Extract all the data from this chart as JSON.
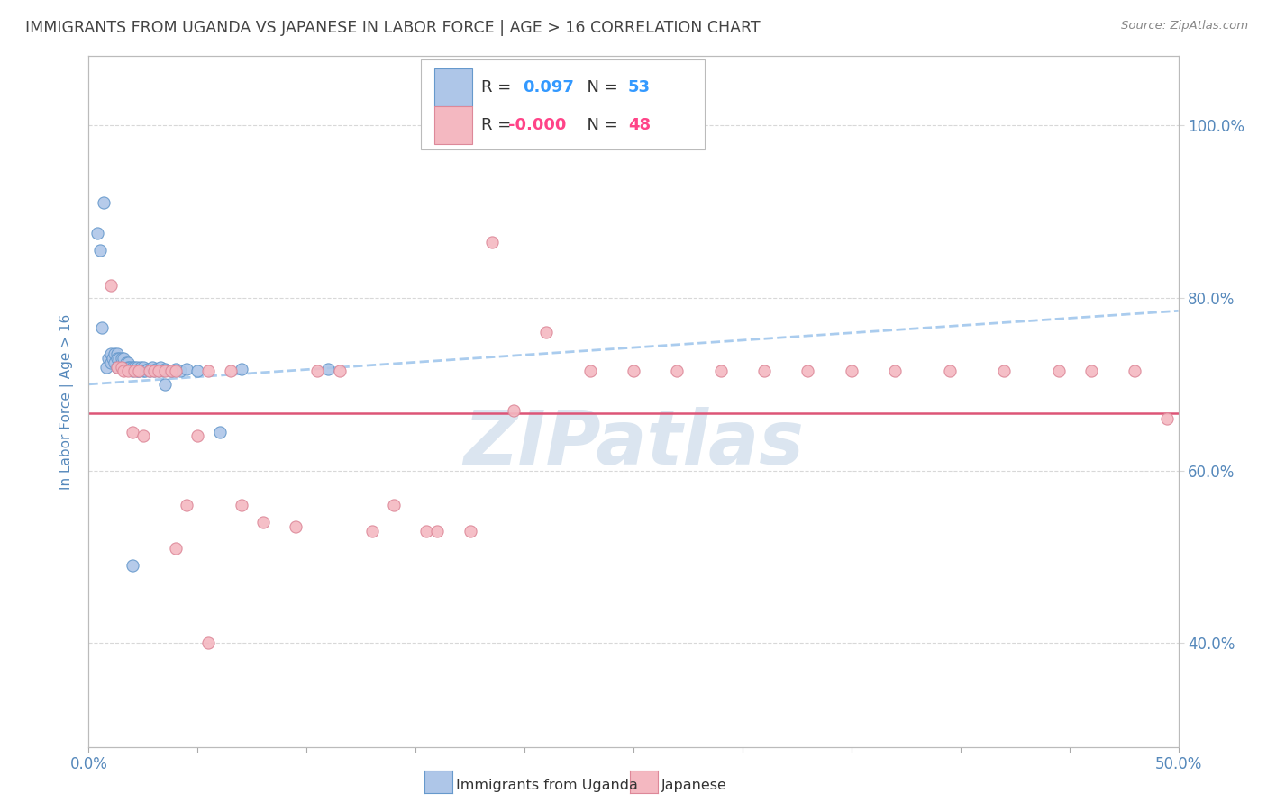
{
  "title": "IMMIGRANTS FROM UGANDA VS JAPANESE IN LABOR FORCE | AGE > 16 CORRELATION CHART",
  "source": "Source: ZipAtlas.com",
  "ylabel": "In Labor Force | Age > 16",
  "xlim": [
    0.0,
    0.5
  ],
  "ylim": [
    0.28,
    1.08
  ],
  "xticks": [
    0.0,
    0.05,
    0.1,
    0.15,
    0.2,
    0.25,
    0.3,
    0.35,
    0.4,
    0.45,
    0.5
  ],
  "yticks_right": [
    0.4,
    0.6,
    0.8,
    1.0
  ],
  "ytick_labels_right": [
    "40.0%",
    "60.0%",
    "80.0%",
    "100.0%"
  ],
  "legend_label1": "R =  0.097   N = 53",
  "legend_label2": "R = -0.000   N = 48",
  "blue_scatter_x": [
    0.004,
    0.005,
    0.006,
    0.007,
    0.008,
    0.009,
    0.01,
    0.01,
    0.011,
    0.012,
    0.012,
    0.013,
    0.013,
    0.013,
    0.014,
    0.015,
    0.015,
    0.016,
    0.016,
    0.017,
    0.017,
    0.018,
    0.018,
    0.019,
    0.02,
    0.02,
    0.021,
    0.022,
    0.022,
    0.023,
    0.024,
    0.025,
    0.025,
    0.026,
    0.027,
    0.028,
    0.029,
    0.03,
    0.031,
    0.032,
    0.033,
    0.034,
    0.035,
    0.038,
    0.04,
    0.042,
    0.045,
    0.05,
    0.06,
    0.07,
    0.11,
    0.035,
    0.02
  ],
  "blue_scatter_y": [
    0.875,
    0.855,
    0.765,
    0.91,
    0.72,
    0.73,
    0.725,
    0.735,
    0.73,
    0.735,
    0.725,
    0.735,
    0.73,
    0.72,
    0.73,
    0.725,
    0.73,
    0.72,
    0.73,
    0.725,
    0.72,
    0.725,
    0.72,
    0.72,
    0.72,
    0.715,
    0.72,
    0.715,
    0.72,
    0.715,
    0.72,
    0.715,
    0.72,
    0.715,
    0.718,
    0.715,
    0.72,
    0.715,
    0.718,
    0.715,
    0.72,
    0.715,
    0.718,
    0.715,
    0.718,
    0.715,
    0.718,
    0.715,
    0.645,
    0.718,
    0.718,
    0.7,
    0.49
  ],
  "pink_scatter_x": [
    0.01,
    0.013,
    0.015,
    0.016,
    0.018,
    0.02,
    0.021,
    0.023,
    0.025,
    0.028,
    0.03,
    0.032,
    0.035,
    0.038,
    0.04,
    0.045,
    0.05,
    0.055,
    0.065,
    0.07,
    0.08,
    0.095,
    0.105,
    0.115,
    0.13,
    0.14,
    0.155,
    0.16,
    0.175,
    0.185,
    0.195,
    0.21,
    0.23,
    0.25,
    0.27,
    0.29,
    0.31,
    0.33,
    0.35,
    0.37,
    0.395,
    0.42,
    0.445,
    0.46,
    0.48,
    0.495,
    0.04,
    0.055
  ],
  "pink_scatter_y": [
    0.815,
    0.72,
    0.72,
    0.715,
    0.715,
    0.645,
    0.715,
    0.715,
    0.64,
    0.715,
    0.715,
    0.715,
    0.715,
    0.715,
    0.715,
    0.56,
    0.64,
    0.715,
    0.715,
    0.56,
    0.54,
    0.535,
    0.715,
    0.715,
    0.53,
    0.56,
    0.53,
    0.53,
    0.53,
    0.865,
    0.67,
    0.76,
    0.715,
    0.715,
    0.715,
    0.715,
    0.715,
    0.715,
    0.715,
    0.715,
    0.715,
    0.715,
    0.715,
    0.715,
    0.715,
    0.66,
    0.51,
    0.4
  ],
  "blue_line_x": [
    0.0,
    0.5
  ],
  "blue_line_y": [
    0.7,
    0.785
  ],
  "pink_line_x": [
    0.0,
    0.5
  ],
  "pink_line_y": [
    0.666,
    0.666
  ],
  "watermark": "ZIPatlas",
  "watermark_color": "#c8d8e8",
  "background_color": "#ffffff",
  "grid_color": "#d8d8d8",
  "title_color": "#444444",
  "axis_label_color": "#5588bb",
  "tick_label_color": "#5588bb",
  "scatter_blue_color": "#aec6e8",
  "scatter_pink_color": "#f4b8c1",
  "scatter_blue_edge": "#6699cc",
  "scatter_pink_edge": "#dd8899",
  "line_blue_color": "#aaccee",
  "line_pink_color": "#dd5577"
}
